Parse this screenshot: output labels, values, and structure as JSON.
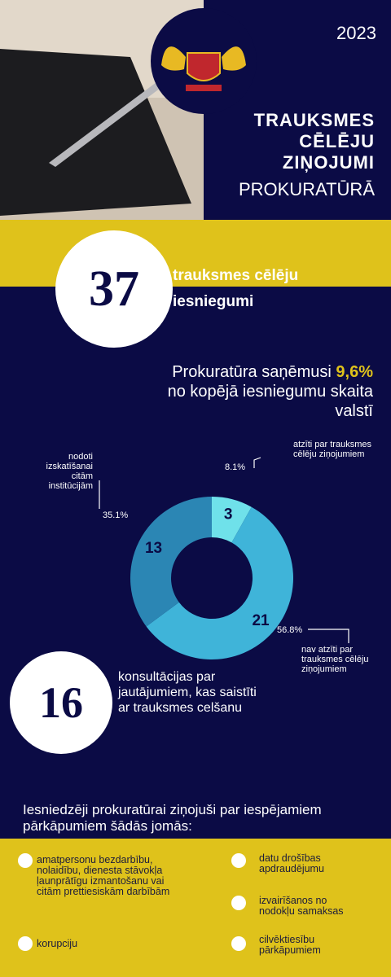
{
  "header": {
    "year": "2023",
    "title_lines": [
      "TRAUKSMES",
      "CĒLĒJU",
      "ZIŅOJUMI"
    ],
    "subtitle": "PROKURATŪRĀ"
  },
  "stat_reports": {
    "value": 37,
    "line1": "trauksmes cēlēju",
    "line2": "iesniegumi"
  },
  "share": {
    "intro": "Prokuratūra saņēmusi",
    "highlight": "9,6%",
    "rest": "no kopējā iesniegumu skaita valstī"
  },
  "chart_data": {
    "type": "pie",
    "donut": true,
    "categories": [
      "atzīti par trauksmes cēlēju ziņojumiem",
      "nav atzīti par trauksmes cēlēju ziņojumiem",
      "nodoti izskatīšanai citām institūcijām"
    ],
    "values": [
      3,
      21,
      13
    ],
    "percents": [
      8.1,
      56.8,
      35.1
    ],
    "percent_labels": [
      "8.1%",
      "56.8%",
      "35.1%"
    ],
    "colors": [
      "#6fe1ea",
      "#3fb4d9",
      "#2b86b4"
    ]
  },
  "stat_consult": {
    "value": 16,
    "text": "konsultācijas par jautājumiem, kas saistīti ar trauksmes celšanu"
  },
  "areas": {
    "intro": "Iesniedzēji prokuratūrai ziņojuši par iespējamiem pārkāpumiem šādās jomās:",
    "items": [
      "amatpersonu bezdarbību, nolaidību, dienesta stāvokļa ļaunprātīgu izmantošanu vai citām prettiesiskām darbībām",
      "korupciju",
      "datu drošības apdraudējumu",
      "izvairīšanos no nodokļu samaksas",
      "cilvēktiesību pārkāpumiem"
    ]
  }
}
